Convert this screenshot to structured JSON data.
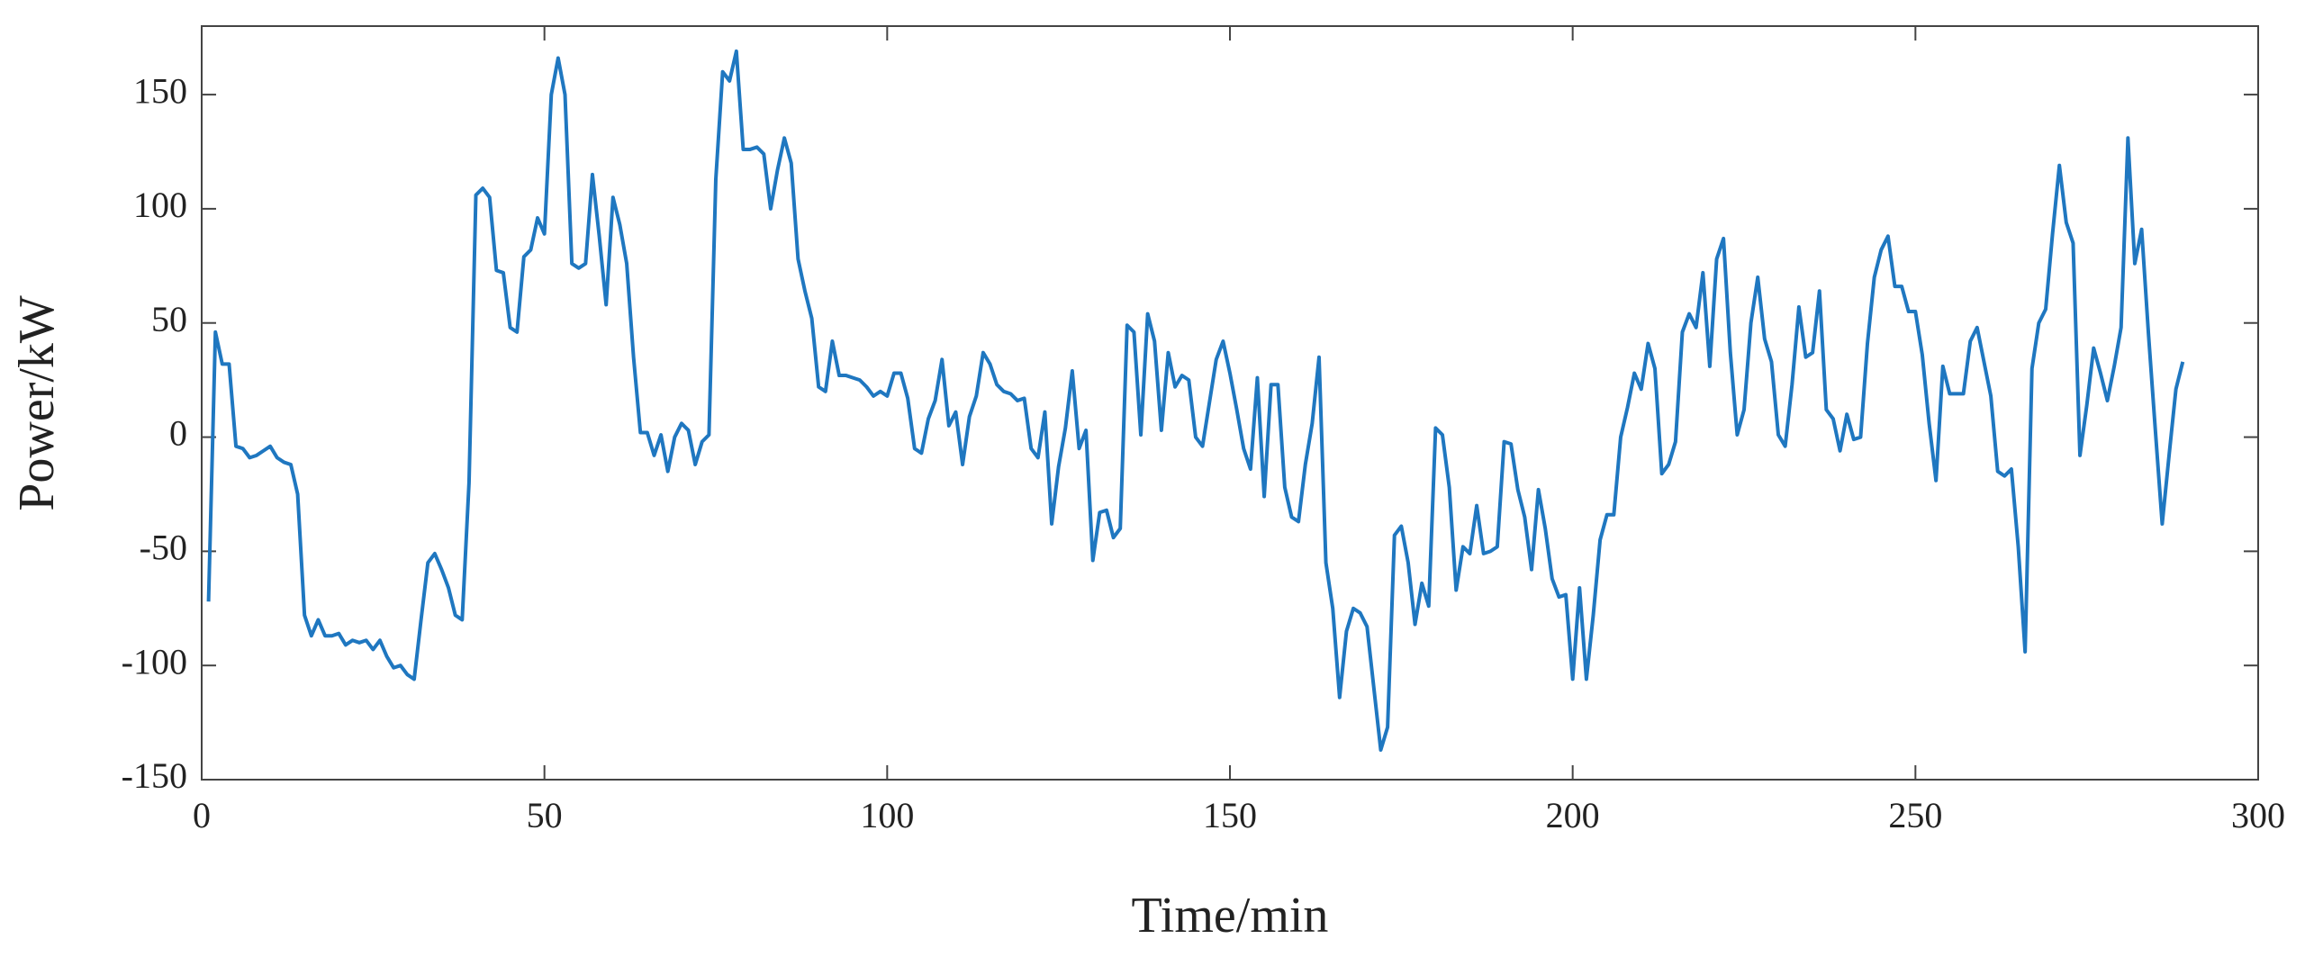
{
  "chart_data": {
    "type": "line",
    "x_label": "Time/min",
    "y_label": "Power/kW",
    "xlim": [
      0,
      300
    ],
    "xticks": [
      0,
      50,
      100,
      150,
      200,
      250,
      300
    ],
    "ylim": [
      -150,
      180
    ],
    "yticks": [
      -150,
      -100,
      -50,
      0,
      50,
      100,
      150
    ],
    "grid": false,
    "x": [
      1,
      2,
      3,
      4,
      5,
      6,
      7,
      8,
      9,
      10,
      11,
      12,
      13,
      14,
      15,
      16,
      17,
      18,
      19,
      20,
      21,
      22,
      23,
      24,
      25,
      26,
      27,
      28,
      29,
      30,
      31,
      32,
      33,
      34,
      35,
      36,
      37,
      38,
      39,
      40,
      41,
      42,
      43,
      44,
      45,
      46,
      47,
      48,
      49,
      50,
      51,
      52,
      53,
      54,
      55,
      56,
      57,
      58,
      59,
      60,
      61,
      62,
      63,
      64,
      65,
      66,
      67,
      68,
      69,
      70,
      71,
      72,
      73,
      74,
      75,
      76,
      77,
      78,
      79,
      80,
      81,
      82,
      83,
      84,
      85,
      86,
      87,
      88,
      89,
      90,
      91,
      92,
      93,
      94,
      95,
      96,
      97,
      98,
      99,
      100,
      101,
      102,
      103,
      104,
      105,
      106,
      107,
      108,
      109,
      110,
      111,
      112,
      113,
      114,
      115,
      116,
      117,
      118,
      119,
      120,
      121,
      122,
      123,
      124,
      125,
      126,
      127,
      128,
      129,
      130,
      131,
      132,
      133,
      134,
      135,
      136,
      137,
      138,
      139,
      140,
      141,
      142,
      143,
      144,
      145,
      146,
      147,
      148,
      149,
      150,
      151,
      152,
      153,
      154,
      155,
      156,
      157,
      158,
      159,
      160,
      161,
      162,
      163,
      164,
      165,
      166,
      167,
      168,
      169,
      170,
      171,
      172,
      173,
      174,
      175,
      176,
      177,
      178,
      179,
      180,
      181,
      182,
      183,
      184,
      185,
      186,
      187,
      188,
      189,
      190,
      191,
      192,
      193,
      194,
      195,
      196,
      197,
      198,
      199,
      200,
      201,
      202,
      203,
      204,
      205,
      206,
      207,
      208,
      209,
      210,
      211,
      212,
      213,
      214,
      215,
      216,
      217,
      218,
      219,
      220,
      221,
      222,
      223,
      224,
      225,
      226,
      227,
      228,
      229,
      230,
      231,
      232,
      233,
      234,
      235,
      236,
      237,
      238,
      239,
      240,
      241,
      242,
      243,
      244,
      245,
      246,
      247,
      248,
      249,
      250,
      251,
      252,
      253,
      254,
      255,
      256,
      257,
      258,
      259,
      260,
      261,
      262,
      263,
      264,
      265,
      266,
      267,
      268,
      269,
      270,
      271,
      272,
      273,
      274,
      275,
      276,
      277,
      278,
      279,
      280,
      281,
      282,
      283,
      284,
      285,
      286,
      287,
      288,
      289
    ],
    "series": [
      {
        "color": "#1f77c0",
        "values": [
          -72,
          46,
          32,
          32,
          -4,
          -5,
          -9,
          -8,
          -6,
          -4,
          -9,
          -11,
          -12,
          -25,
          -78,
          -87,
          -80,
          -87,
          -87,
          -86,
          -91,
          -89,
          -90,
          -89,
          -93,
          -89,
          -96,
          -101,
          -100,
          -104,
          -106,
          -80,
          -55,
          -51,
          -58,
          -66,
          -78,
          -80,
          -20,
          106,
          109,
          105,
          73,
          72,
          48,
          46,
          79,
          82,
          96,
          89,
          150,
          166,
          150,
          76,
          74,
          76,
          115,
          88,
          58,
          105,
          93,
          76,
          35,
          2,
          2,
          -8,
          1,
          -15,
          0,
          6,
          3,
          -12,
          -2,
          1,
          113,
          160,
          156,
          169,
          126,
          126,
          127,
          124,
          100,
          117,
          131,
          120,
          78,
          64,
          52,
          22,
          20,
          42,
          27,
          27,
          26,
          25,
          22,
          18,
          20,
          18,
          28,
          28,
          17,
          -5,
          -7,
          8,
          16,
          34,
          5,
          11,
          -12,
          9,
          18,
          37,
          32,
          23,
          20,
          19,
          16,
          17,
          -5,
          -9,
          11,
          -38,
          -13,
          4,
          29,
          -5,
          3,
          -54,
          -33,
          -32,
          -44,
          -40,
          49,
          46,
          1,
          54,
          42,
          3,
          37,
          22,
          27,
          25,
          0,
          -4,
          15,
          34,
          42,
          28,
          12,
          -5,
          -14,
          26,
          -26,
          23,
          23,
          -22,
          -35,
          -37,
          -12,
          6,
          35,
          -55,
          -75,
          -114,
          -85,
          -75,
          -77,
          -83,
          -110,
          -137,
          -127,
          -43,
          -39,
          -55,
          -82,
          -64,
          -74,
          4,
          1,
          -22,
          -67,
          -48,
          -51,
          -30,
          -51,
          -50,
          -48,
          -2,
          -3,
          -23,
          -35,
          -58,
          -23,
          -40,
          -62,
          -70,
          -69,
          -106,
          -66,
          -106,
          -78,
          -45,
          -34,
          -34,
          0,
          13,
          28,
          21,
          41,
          30,
          -16,
          -12,
          -2,
          46,
          54,
          48,
          72,
          31,
          78,
          87,
          37,
          1,
          12,
          50,
          70,
          43,
          33,
          1,
          -4,
          23,
          57,
          35,
          37,
          64,
          12,
          8,
          -6,
          10,
          -1,
          0,
          41,
          70,
          82,
          88,
          66,
          66,
          55,
          55,
          36,
          6,
          -19,
          31,
          19,
          19,
          19,
          42,
          48,
          33,
          18,
          -15,
          -17,
          -14,
          -48,
          -94,
          30,
          50,
          56,
          89,
          119,
          94,
          85,
          -8,
          14,
          39,
          28,
          16,
          31,
          48,
          131,
          76,
          91,
          45,
          3,
          -38,
          -8,
          21,
          33
        ]
      }
    ]
  }
}
